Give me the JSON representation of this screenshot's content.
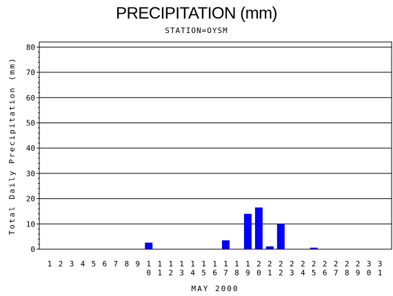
{
  "chart_data": {
    "type": "bar",
    "title": "PRECIPITATION (mm)",
    "subtitle": "STATION=OYSM",
    "xlabel": "MAY 2000",
    "ylabel": "Total Daily Precipitation (mm)",
    "ylim": [
      0,
      82
    ],
    "yticks": [
      0,
      10,
      20,
      30,
      40,
      50,
      60,
      70,
      80
    ],
    "grid": true,
    "bar_color": "#0000ff",
    "categories": [
      "1",
      "2",
      "3",
      "4",
      "5",
      "6",
      "7",
      "8",
      "9",
      "10",
      "11",
      "12",
      "13",
      "14",
      "15",
      "16",
      "17",
      "18",
      "19",
      "20",
      "21",
      "22",
      "23",
      "24",
      "25",
      "26",
      "27",
      "28",
      "29",
      "30",
      "31"
    ],
    "values": [
      0,
      0,
      0,
      0,
      0,
      0,
      0,
      0,
      0,
      2.6,
      0,
      0,
      0,
      0,
      0,
      0,
      3.5,
      0,
      14.0,
      16.5,
      1.1,
      9.9,
      0,
      0,
      0.6,
      0,
      0,
      0,
      0,
      0,
      0
    ]
  }
}
